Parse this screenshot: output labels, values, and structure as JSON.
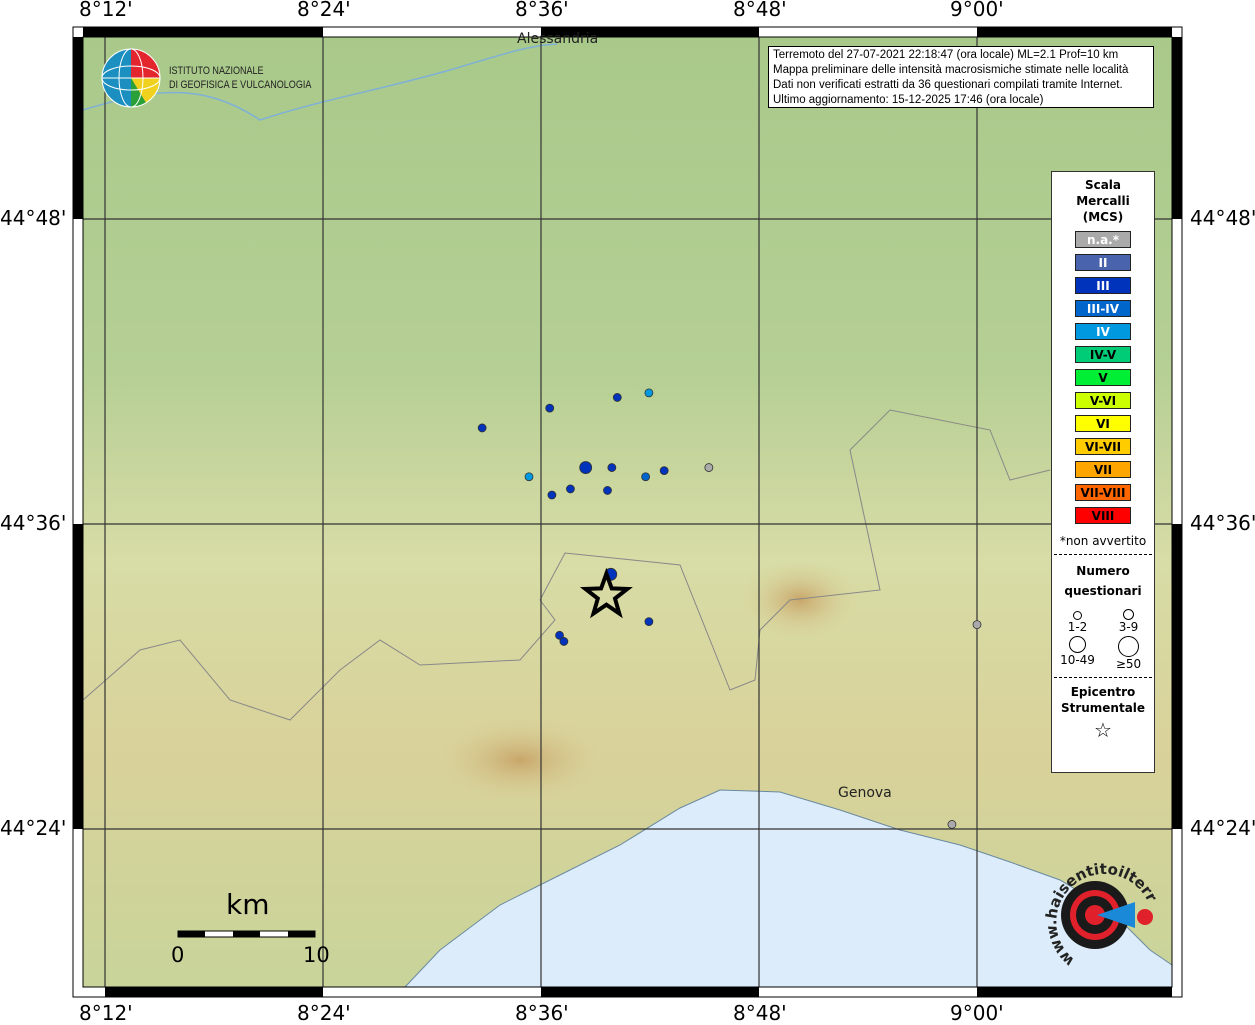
{
  "info": {
    "line1": "Terremoto del 27-07-2021 22:18:47 (ora locale) ML=2.1 Prof=10 km",
    "line2": "Mappa preliminare delle intensità macrosismiche stimate nelle località",
    "line3": "Dati non verificati estratti da 36 questionari compilati tramite Internet.",
    "line4": "Ultimo aggiornamento: 15-12-2025 17:46 (ora locale)"
  },
  "axes": {
    "lon_ticks": [
      "8°12'",
      "8°24'",
      "8°36'",
      "8°48'",
      "9°00'"
    ],
    "lat_ticks": [
      "44°48'",
      "44°36'",
      "44°24'"
    ]
  },
  "places": [
    {
      "name": "Alessandria",
      "lon": 8.615,
      "lat": 44.913
    },
    {
      "name": "Genova",
      "lon": 8.93,
      "lat": 44.41
    }
  ],
  "logo_ingv": {
    "line1": "ISTITUTO NAZIONALE",
    "line2": "DI GEOFISICA E VULCANOLOGIA"
  },
  "logo_hsit": "www.haisentitoilterremoto.it",
  "legend": {
    "title1": "Scala",
    "title2": "Mercalli",
    "title3": "(MCS)",
    "classes": [
      {
        "label": "n.a.*",
        "color": "#aaaaaa",
        "text": "#ffffff"
      },
      {
        "label": "II",
        "color": "#4a63ad",
        "text": "#ffffff"
      },
      {
        "label": "III",
        "color": "#0033bb",
        "text": "#ffffff"
      },
      {
        "label": "III-IV",
        "color": "#0066cc",
        "text": "#ffffff"
      },
      {
        "label": "IV",
        "color": "#0099e0",
        "text": "#ffffff"
      },
      {
        "label": "IV-V",
        "color": "#00cc77",
        "text": "#000000"
      },
      {
        "label": "V",
        "color": "#00ee33",
        "text": "#000000"
      },
      {
        "label": "V-VI",
        "color": "#ccff00",
        "text": "#000000"
      },
      {
        "label": "VI",
        "color": "#ffff00",
        "text": "#000000"
      },
      {
        "label": "VI-VII",
        "color": "#ffcc00",
        "text": "#000000"
      },
      {
        "label": "VII",
        "color": "#ffa500",
        "text": "#000000"
      },
      {
        "label": "VII-VIII",
        "color": "#ff6600",
        "text": "#000000"
      },
      {
        "label": "VIII",
        "color": "#ff0000",
        "text": "#000000"
      }
    ],
    "note": "*non avvertito",
    "count_title1": "Numero",
    "count_title2": "questionari",
    "counts": [
      "1-2",
      "3-9",
      "10-49",
      "≥50"
    ],
    "epi_title1": "Epicentro",
    "epi_title2": "Strumentale"
  },
  "scale": {
    "unit": "km",
    "min": "0",
    "max": "10"
  },
  "epicenter": {
    "lon": 8.66,
    "lat": 44.553
  },
  "points": [
    {
      "lon": 8.546,
      "lat": 44.663,
      "mcs": "III",
      "n": "1-2"
    },
    {
      "lon": 8.608,
      "lat": 44.676,
      "mcs": "III",
      "n": "1-2"
    },
    {
      "lon": 8.67,
      "lat": 44.683,
      "mcs": "III",
      "n": "1-2"
    },
    {
      "lon": 8.699,
      "lat": 44.686,
      "mcs": "IV",
      "n": "1-2"
    },
    {
      "lon": 8.589,
      "lat": 44.631,
      "mcs": "IV",
      "n": "1-2"
    },
    {
      "lon": 8.641,
      "lat": 44.637,
      "mcs": "III",
      "n": "3-9"
    },
    {
      "lon": 8.665,
      "lat": 44.637,
      "mcs": "III",
      "n": "1-2"
    },
    {
      "lon": 8.696,
      "lat": 44.631,
      "mcs": "III-IV",
      "n": "1-2"
    },
    {
      "lon": 8.713,
      "lat": 44.635,
      "mcs": "III",
      "n": "1-2"
    },
    {
      "lon": 8.754,
      "lat": 44.637,
      "mcs": "n.a.*",
      "n": "1-2"
    },
    {
      "lon": 8.61,
      "lat": 44.619,
      "mcs": "III",
      "n": "1-2"
    },
    {
      "lon": 8.627,
      "lat": 44.623,
      "mcs": "III",
      "n": "1-2"
    },
    {
      "lon": 8.661,
      "lat": 44.622,
      "mcs": "III",
      "n": "1-2"
    },
    {
      "lon": 8.664,
      "lat": 44.567,
      "mcs": "III",
      "n": "3-9"
    },
    {
      "lon": 8.699,
      "lat": 44.536,
      "mcs": "III",
      "n": "1-2"
    },
    {
      "lon": 8.617,
      "lat": 44.527,
      "mcs": "III",
      "n": "1-2"
    },
    {
      "lon": 8.621,
      "lat": 44.523,
      "mcs": "III",
      "n": "1-2"
    },
    {
      "lon": 9.0,
      "lat": 44.534,
      "mcs": "n.a.*",
      "n": "1-2"
    },
    {
      "lon": 8.977,
      "lat": 44.403,
      "mcs": "n.a.*",
      "n": "1-2"
    }
  ]
}
